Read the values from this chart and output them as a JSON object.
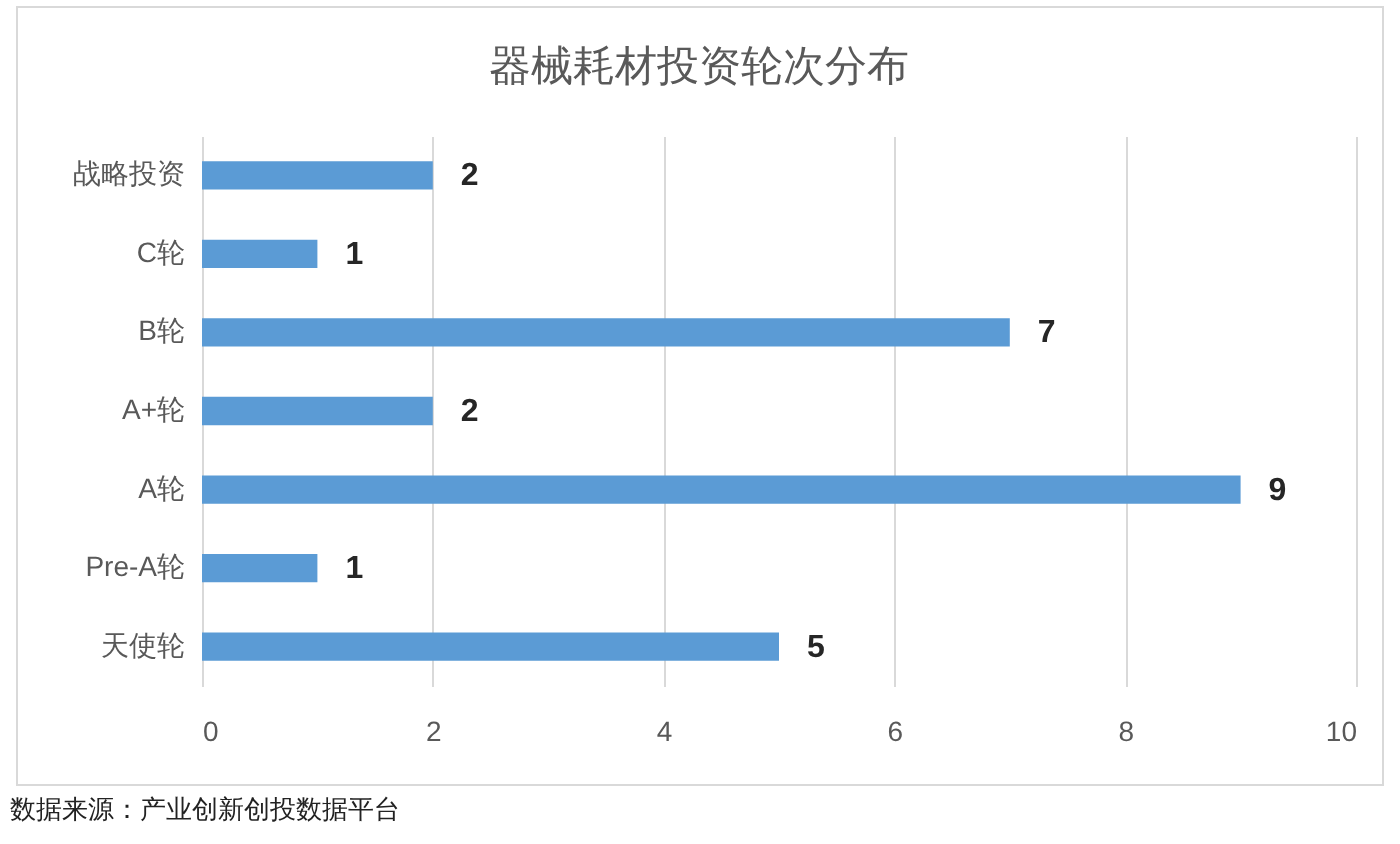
{
  "chart_data": {
    "type": "bar",
    "orientation": "horizontal",
    "title": "器械耗材投资轮次分布",
    "categories": [
      "战略投资",
      "C轮",
      "B轮",
      "A+轮",
      "A轮",
      "Pre-A轮",
      "天使轮"
    ],
    "values": [
      2,
      1,
      7,
      2,
      9,
      1,
      5
    ],
    "color": "#5b9bd5",
    "xlim": [
      0,
      10
    ],
    "xticks": [
      0,
      2,
      4,
      6,
      8,
      10
    ],
    "grid": "x",
    "data_labels": true,
    "annotations": [
      "数据来源：产业创新创投数据平台"
    ]
  }
}
